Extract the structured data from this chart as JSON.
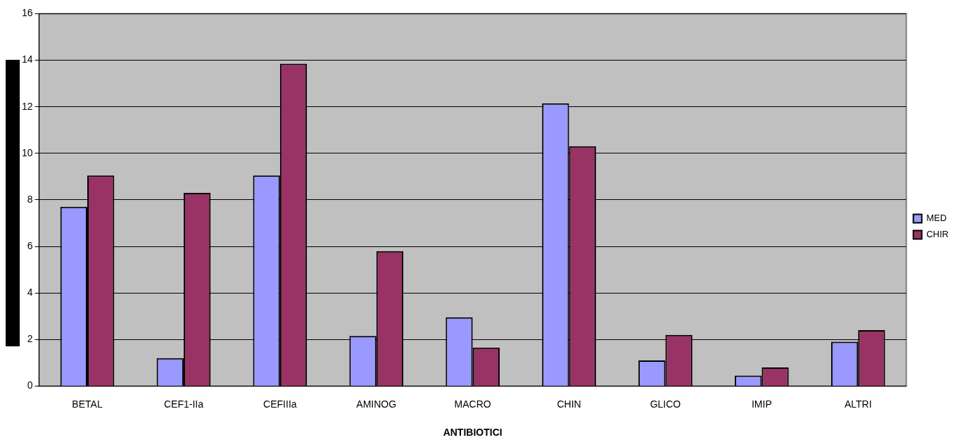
{
  "chart_data": {
    "type": "bar",
    "xlabel": "ANTIBIOTICI",
    "categories": [
      "BETAL",
      "CEF1-IIa",
      "CEFIIIa",
      "AMINOG",
      "MACRO",
      "CHIN",
      "GLICO",
      "IMIP",
      "ALTRI"
    ],
    "series": [
      {
        "name": "MED",
        "color": "#9999ff",
        "values": [
          7.7,
          1.2,
          9.05,
          2.15,
          2.95,
          12.15,
          1.1,
          0.45,
          1.9
        ]
      },
      {
        "name": "CHIR",
        "color": "#993366",
        "values": [
          9.05,
          8.3,
          13.85,
          5.8,
          1.65,
          10.3,
          2.2,
          0.8,
          2.4
        ]
      }
    ],
    "ylim": [
      0,
      16
    ],
    "yticks": [
      0,
      2,
      4,
      6,
      8,
      10,
      12,
      14,
      16
    ],
    "grid": "y",
    "legend": "right"
  }
}
